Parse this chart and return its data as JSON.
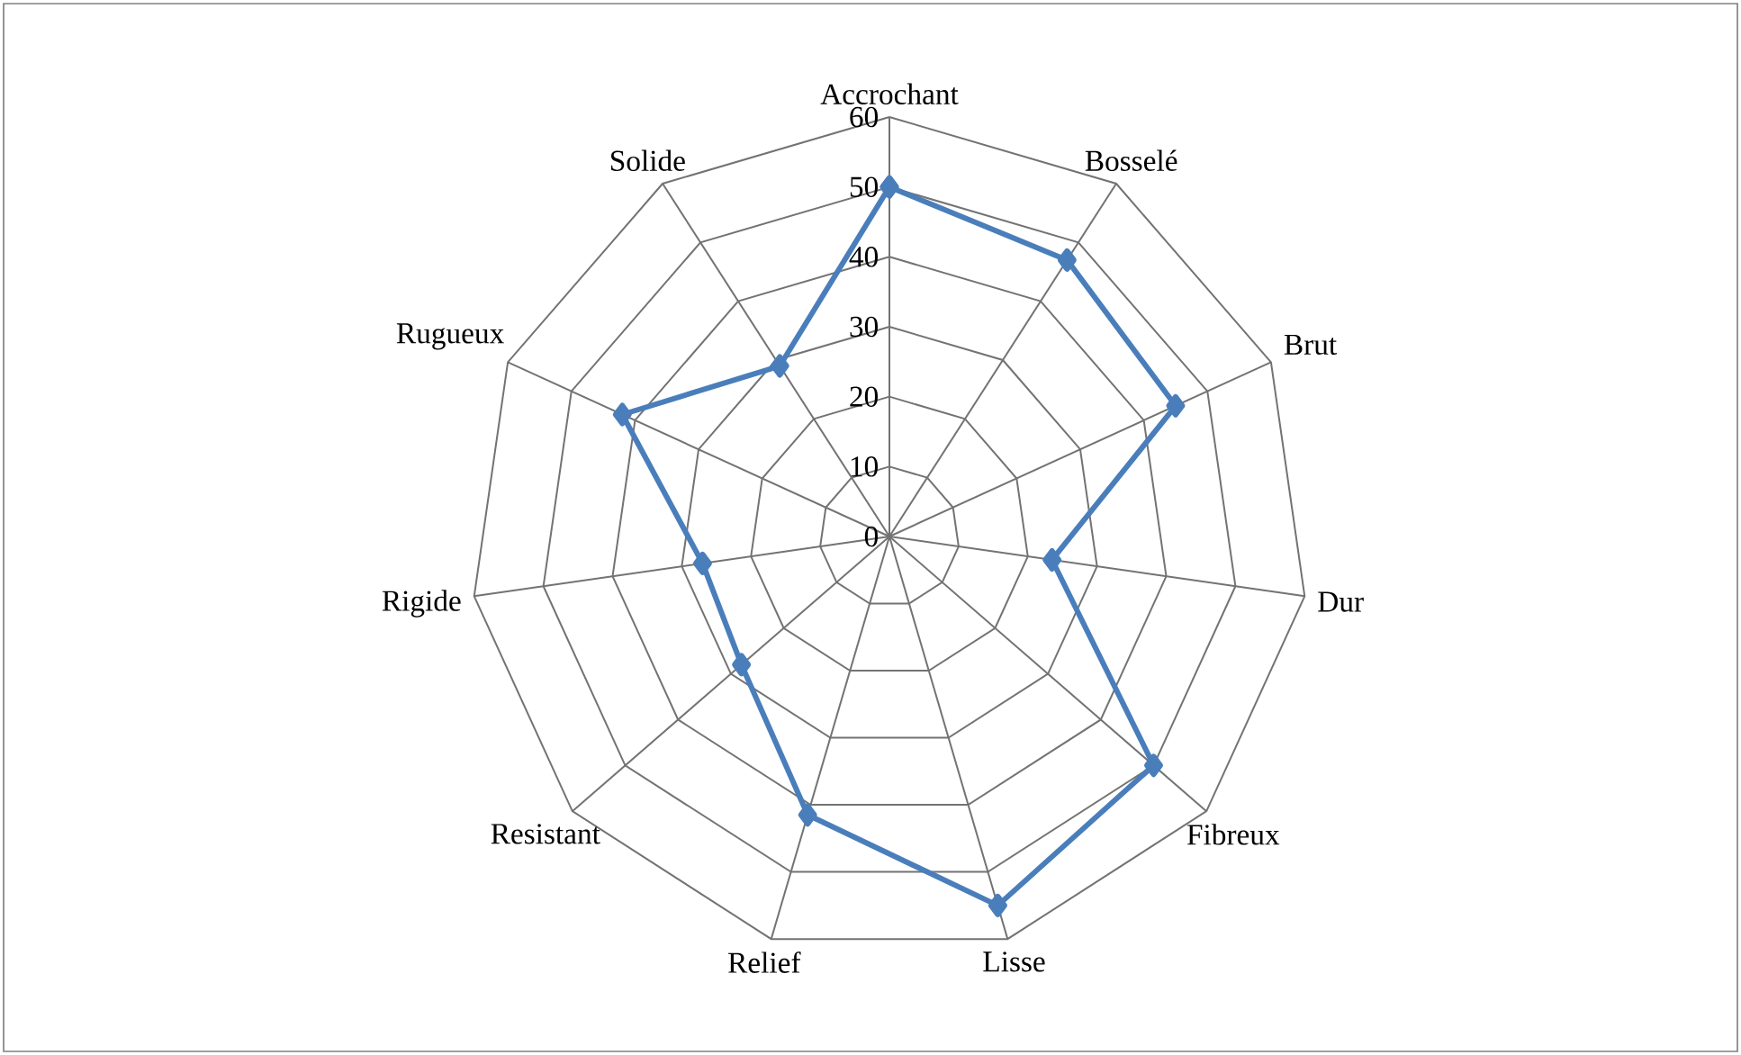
{
  "chart_data": {
    "type": "radar",
    "categories": [
      "Accrochant",
      "Bosselé",
      "Brut",
      "Dur",
      "Fibreux",
      "Lisse",
      "Relief",
      "Resistant",
      "Rigide",
      "Rugueux",
      "Solide"
    ],
    "series": [
      {
        "color": "#4a7ebb",
        "values": [
          50,
          47,
          45,
          23.5,
          50,
          55,
          41.5,
          28,
          27,
          42,
          29
        ]
      }
    ],
    "ylim": [
      0,
      60
    ],
    "yticks": [
      0,
      10,
      20,
      30,
      40,
      50,
      60
    ],
    "grid": true,
    "marker": "diamond",
    "line_style": "solid"
  }
}
